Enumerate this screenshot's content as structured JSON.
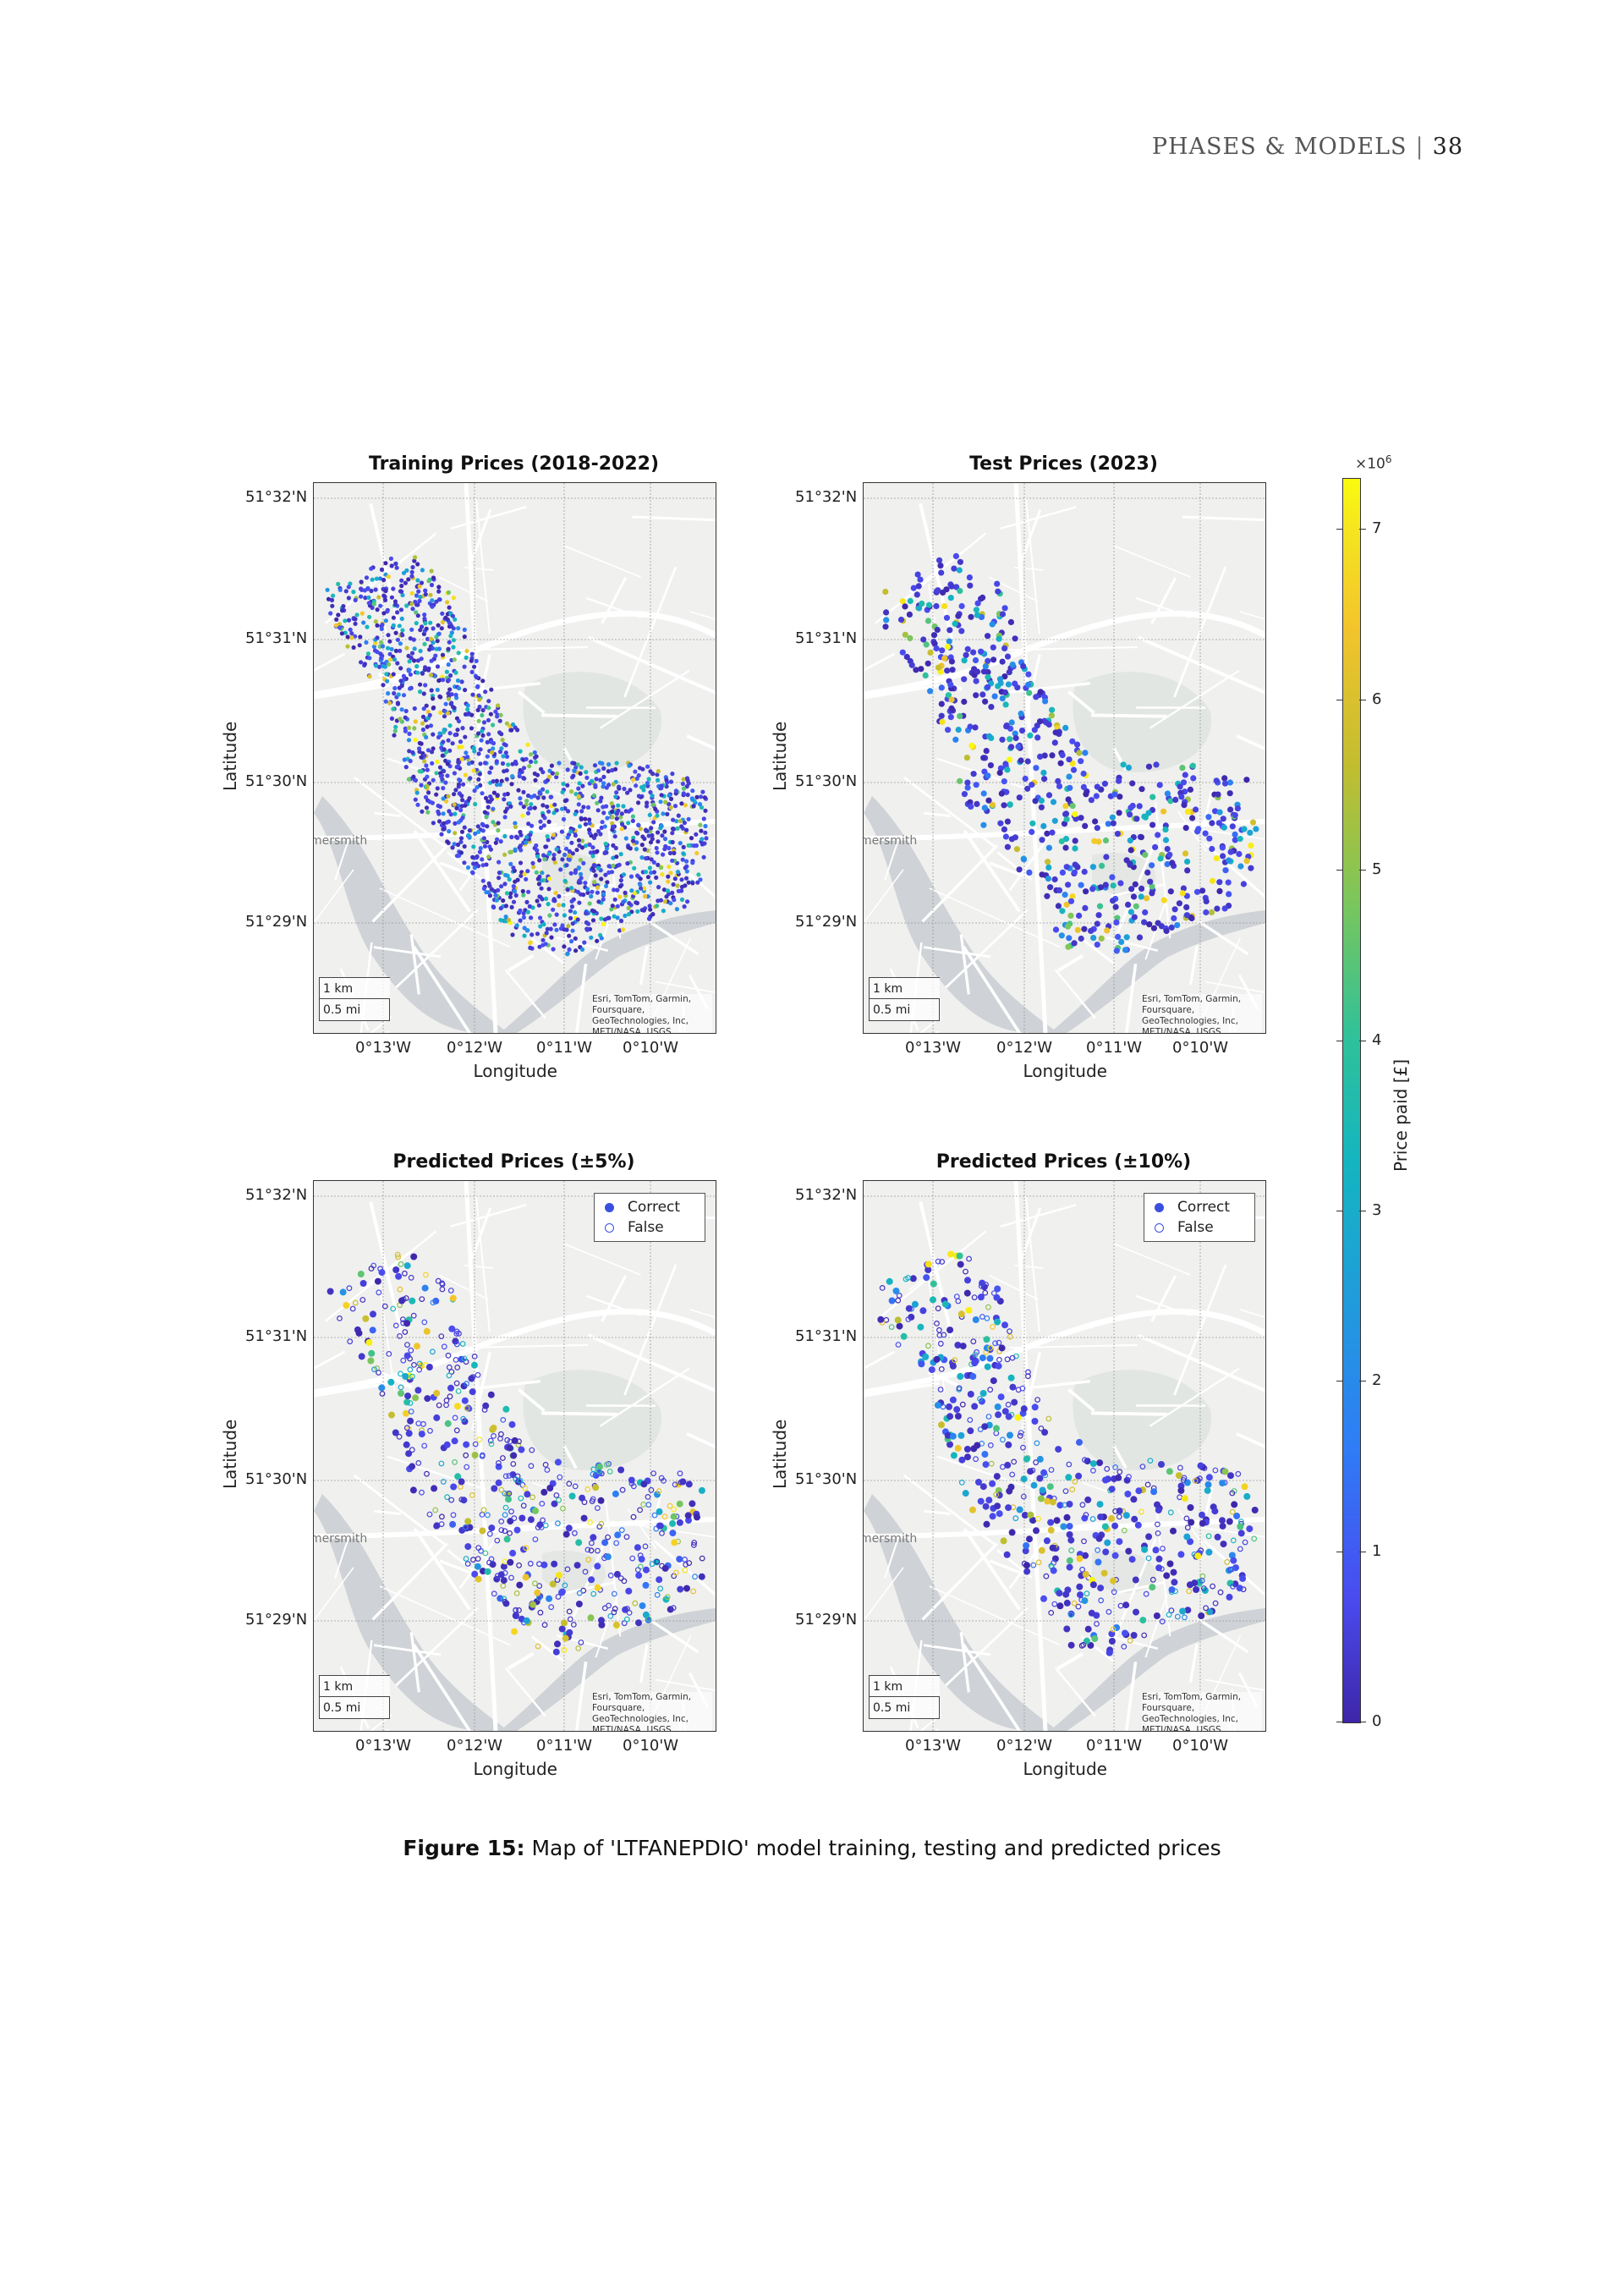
{
  "header": {
    "section": "PHASES & MODELS",
    "separator": "|",
    "page_number": "38"
  },
  "figure": {
    "caption_label": "Figure 15:",
    "caption_text": "Map of 'LTFANEPDIO' model training, testing and predicted prices"
  },
  "shared_axes": {
    "xlabel": "Longitude",
    "ylabel": "Latitude",
    "yticks": [
      "51°32'N",
      "51°31'N",
      "51°30'N",
      "51°29'N"
    ],
    "xticks": [
      "0°13'W",
      "0°12'W",
      "0°11'W",
      "0°10'W"
    ],
    "map_label": "mersmith",
    "scale_km": "1 km",
    "scale_mi": "0.5 mi",
    "attribution": "Esri, TomTom, Garmin, Foursquare, GeoTechnologies, Inc, METI/NASA, USGS"
  },
  "legend": {
    "correct": "Correct",
    "false": "False"
  },
  "colorbar": {
    "title": "Price paid [£]",
    "multiplier_base": "×10",
    "multiplier_exp": "6",
    "ticks": [
      "0",
      "1",
      "2",
      "3",
      "4",
      "5",
      "6",
      "7"
    ],
    "range": [
      0,
      7.3
    ]
  },
  "chart_data": [
    {
      "type": "scatter",
      "title": "Training Prices (2018-2022)",
      "xlabel": "Longitude",
      "ylabel": "Latitude",
      "color_by": "Price paid [£]"
    },
    {
      "type": "scatter",
      "title": "Test Prices (2023)",
      "xlabel": "Longitude",
      "ylabel": "Latitude",
      "color_by": "Price paid [£]"
    },
    {
      "type": "scatter",
      "title": "Predicted Prices (±5%)",
      "xlabel": "Longitude",
      "ylabel": "Latitude",
      "series": [
        {
          "name": "Correct"
        },
        {
          "name": "False"
        }
      ]
    },
    {
      "type": "scatter",
      "title": "Predicted Prices (±10%)",
      "xlabel": "Longitude",
      "ylabel": "Latitude",
      "series": [
        {
          "name": "Correct"
        },
        {
          "name": "False"
        }
      ]
    }
  ]
}
